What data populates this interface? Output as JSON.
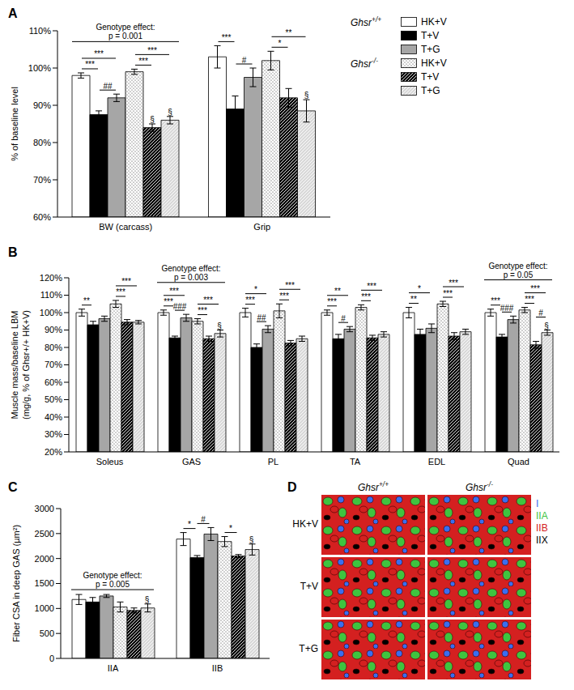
{
  "chart_data": [
    {
      "panel": "A",
      "type": "bar",
      "y_label": "% of baseline level",
      "categories": [
        "BW (carcass)",
        "Grip"
      ],
      "ylim": [
        60,
        110
      ],
      "yticks": [
        {
          "value": 60,
          "label": "60%"
        },
        {
          "value": 70,
          "label": "70%"
        },
        {
          "value": 80,
          "label": "80%"
        },
        {
          "value": 90,
          "label": "90%"
        },
        {
          "value": 100,
          "label": "100%"
        },
        {
          "value": 110,
          "label": "110%"
        }
      ],
      "legend": "right",
      "series": [
        {
          "name": "HK+V",
          "group": "Ghsr+/+",
          "color": "#ffffff",
          "values": [
            98,
            103
          ],
          "errors": [
            0.7,
            3
          ]
        },
        {
          "name": "T+V",
          "group": "Ghsr+/+",
          "color": "#000000",
          "values": [
            87.5,
            89
          ],
          "errors": [
            1,
            3.5
          ]
        },
        {
          "name": "T+G",
          "group": "Ghsr+/+",
          "color": "#a6a6a6",
          "values": [
            92,
            97.5
          ],
          "errors": [
            1,
            2.5
          ]
        },
        {
          "name": "HK+V",
          "group": "Ghsr-/-",
          "color": "#ffffff",
          "values": [
            99,
            102
          ],
          "errors": [
            0.7,
            2.5
          ]
        },
        {
          "name": "T+V",
          "group": "Ghsr-/-",
          "color": "#000000",
          "values": [
            84,
            92
          ],
          "errors": [
            1,
            2.5
          ]
        },
        {
          "name": "T+G",
          "group": "Ghsr-/-",
          "color": "#d9d9d9",
          "values": [
            86,
            88.5
          ],
          "errors": [
            1,
            3
          ]
        }
      ],
      "annotations": [
        {
          "category": 0,
          "from": 0,
          "to": 1,
          "label": "***"
        },
        {
          "category": 0,
          "from": 1,
          "to": 2,
          "label": "##"
        },
        {
          "category": 0,
          "from": 0,
          "to": 2,
          "label": "***"
        },
        {
          "category": 0,
          "from": 3,
          "to": 4,
          "label": "***"
        },
        {
          "category": 0,
          "from": 3,
          "to": 5,
          "label": "***"
        },
        {
          "category": 1,
          "from": 0,
          "to": 1,
          "label": "***"
        },
        {
          "category": 1,
          "from": 1,
          "to": 2,
          "label": "#"
        },
        {
          "category": 1,
          "from": 3,
          "to": 4,
          "label": "*"
        },
        {
          "category": 1,
          "from": 3,
          "to": 5,
          "label": "**"
        }
      ],
      "group_tests": [
        {
          "category": 0,
          "lines": [
            "Genotype effect:",
            "p = 0.001"
          ]
        }
      ],
      "marks": [
        {
          "category": 0,
          "series": 4,
          "label": "§"
        },
        {
          "category": 0,
          "series": 5,
          "label": "§"
        },
        {
          "category": 1,
          "series": 5,
          "label": "§"
        }
      ]
    },
    {
      "panel": "B",
      "type": "bar",
      "y_label": "Muscle mass/baseline LBM (mg/g, % of Ghsr+/+ HK+V)",
      "categories": [
        "Soleus",
        "GAS",
        "PL",
        "TA",
        "EDL",
        "Quad"
      ],
      "ylim": [
        20,
        120
      ],
      "yticks": [
        {
          "value": 20,
          "label": "20%"
        },
        {
          "value": 30,
          "label": "30%"
        },
        {
          "value": 40,
          "label": "40%"
        },
        {
          "value": 50,
          "label": "50%"
        },
        {
          "value": 60,
          "label": "60%"
        },
        {
          "value": 70,
          "label": "70%"
        },
        {
          "value": 80,
          "label": "80%"
        },
        {
          "value": 90,
          "label": "90%"
        },
        {
          "value": 100,
          "label": "100%"
        },
        {
          "value": 110,
          "label": "110%"
        },
        {
          "value": 120,
          "label": "120%"
        }
      ],
      "series": [
        {
          "name": "HK+V",
          "group": "Ghsr+/+",
          "color": "#ffffff",
          "values": [
            100,
            100,
            100,
            100,
            100,
            100
          ],
          "errors": [
            2,
            1.5,
            2.5,
            1.5,
            3,
            2
          ]
        },
        {
          "name": "T+V",
          "group": "Ghsr+/+",
          "color": "#000000",
          "values": [
            93,
            85.5,
            80,
            85,
            87.5,
            86
          ],
          "errors": [
            2,
            1,
            2,
            2.5,
            3,
            1.5
          ]
        },
        {
          "name": "T+G",
          "group": "Ghsr+/+",
          "color": "#a6a6a6",
          "values": [
            96.5,
            97,
            90.5,
            90.5,
            91,
            96
          ],
          "errors": [
            1.5,
            2,
            2,
            1.5,
            2.5,
            2
          ]
        },
        {
          "name": "HK+V",
          "group": "Ghsr-/-",
          "color": "#ffffff",
          "values": [
            105,
            95,
            101,
            103,
            105,
            101.5
          ],
          "errors": [
            2,
            1.5,
            4,
            1.5,
            1.5,
            1.5
          ]
        },
        {
          "name": "T+V",
          "group": "Ghsr-/-",
          "color": "#000000",
          "values": [
            94.5,
            85,
            82.5,
            85.5,
            86.5,
            81.5
          ],
          "errors": [
            1.5,
            1.5,
            1.5,
            1.5,
            2,
            2
          ]
        },
        {
          "name": "T+G",
          "group": "Ghsr-/-",
          "color": "#d9d9d9",
          "values": [
            94.5,
            88,
            85,
            87.5,
            89,
            88.5
          ],
          "errors": [
            1,
            2,
            1.5,
            1.5,
            1.5,
            1.5
          ]
        }
      ],
      "annotations": [
        {
          "category": 0,
          "from": 0,
          "to": 1,
          "label": "**"
        },
        {
          "category": 0,
          "from": 3,
          "to": 4,
          "label": "***"
        },
        {
          "category": 0,
          "from": 3,
          "to": 5,
          "label": "***"
        },
        {
          "category": 1,
          "from": 0,
          "to": 1,
          "label": "***"
        },
        {
          "category": 1,
          "from": 1,
          "to": 2,
          "label": "###"
        },
        {
          "category": 1,
          "from": 0,
          "to": 2,
          "label": "***"
        },
        {
          "category": 1,
          "from": 3,
          "to": 4,
          "label": "***"
        },
        {
          "category": 1,
          "from": 3,
          "to": 5,
          "label": "***"
        },
        {
          "category": 2,
          "from": 0,
          "to": 1,
          "label": "***"
        },
        {
          "category": 2,
          "from": 1,
          "to": 2,
          "label": "##"
        },
        {
          "category": 2,
          "from": 0,
          "to": 2,
          "label": "*"
        },
        {
          "category": 2,
          "from": 3,
          "to": 4,
          "label": "***"
        },
        {
          "category": 2,
          "from": 3,
          "to": 5,
          "label": "***"
        },
        {
          "category": 3,
          "from": 0,
          "to": 1,
          "label": "***"
        },
        {
          "category": 3,
          "from": 1,
          "to": 2,
          "label": "#"
        },
        {
          "category": 3,
          "from": 0,
          "to": 2,
          "label": "**"
        },
        {
          "category": 3,
          "from": 3,
          "to": 4,
          "label": "***"
        },
        {
          "category": 3,
          "from": 3,
          "to": 5,
          "label": "***"
        },
        {
          "category": 4,
          "from": 0,
          "to": 1,
          "label": "**"
        },
        {
          "category": 4,
          "from": 0,
          "to": 2,
          "label": "*"
        },
        {
          "category": 4,
          "from": 3,
          "to": 4,
          "label": "***"
        },
        {
          "category": 4,
          "from": 3,
          "to": 5,
          "label": "***"
        },
        {
          "category": 5,
          "from": 0,
          "to": 1,
          "label": "***"
        },
        {
          "category": 5,
          "from": 1,
          "to": 2,
          "label": "###"
        },
        {
          "category": 5,
          "from": 3,
          "to": 4,
          "label": "***"
        },
        {
          "category": 5,
          "from": 4,
          "to": 5,
          "label": "#"
        },
        {
          "category": 5,
          "from": 3,
          "to": 5,
          "label": "***"
        }
      ],
      "group_tests": [
        {
          "category": 1,
          "lines": [
            "Genotype effect:",
            "p = 0.003"
          ]
        },
        {
          "category": 5,
          "lines": [
            "Genotype effect:",
            "p = 0.05"
          ]
        }
      ],
      "marks": [
        {
          "category": 1,
          "series": 5,
          "label": "§"
        },
        {
          "category": 5,
          "series": 5,
          "label": "§"
        }
      ]
    },
    {
      "panel": "C",
      "type": "bar",
      "y_label": "Fiber CSA in deep GAS (µm²)",
      "categories": [
        "IIA",
        "IIB"
      ],
      "ylim": [
        0,
        3000
      ],
      "yticks": [
        0,
        500,
        1000,
        1500,
        2000,
        2500,
        3000
      ],
      "series": [
        {
          "name": "HK+V",
          "group": "Ghsr+/+",
          "color": "#ffffff",
          "values": [
            1180,
            2390
          ],
          "errors": [
            100,
            130
          ]
        },
        {
          "name": "T+V",
          "group": "Ghsr+/+",
          "color": "#000000",
          "values": [
            1130,
            2020
          ],
          "errors": [
            90,
            40
          ]
        },
        {
          "name": "T+G",
          "group": "Ghsr+/+",
          "color": "#a6a6a6",
          "values": [
            1250,
            2490
          ],
          "errors": [
            30,
            130
          ]
        },
        {
          "name": "HK+V",
          "group": "Ghsr-/-",
          "color": "#ffffff",
          "values": [
            1030,
            2340
          ],
          "errors": [
            100,
            100
          ]
        },
        {
          "name": "T+V",
          "group": "Ghsr-/-",
          "color": "#000000",
          "values": [
            960,
            2050
          ],
          "errors": [
            50,
            30
          ]
        },
        {
          "name": "T+G",
          "group": "Ghsr-/-",
          "color": "#d9d9d9",
          "values": [
            1010,
            2180
          ],
          "errors": [
            80,
            110
          ]
        }
      ],
      "annotations": [
        {
          "category": 1,
          "from": 0,
          "to": 1,
          "label": "*"
        },
        {
          "category": 1,
          "from": 1,
          "to": 2,
          "label": "#"
        },
        {
          "category": 1,
          "from": 3,
          "to": 4,
          "label": "*"
        }
      ],
      "group_tests": [
        {
          "category": 0,
          "lines": [
            "Genotype effect:",
            "p = 0.005"
          ]
        }
      ],
      "marks": [
        {
          "category": 0,
          "series": 5,
          "label": "§"
        },
        {
          "category": 1,
          "series": 5,
          "label": "§"
        }
      ]
    }
  ],
  "panel_d": {
    "panel": "D",
    "columns": [
      "Ghsr+/+",
      "Ghsr-/-"
    ],
    "rows": [
      "HK+V",
      "T+V",
      "T+G"
    ],
    "fiber_types": [
      {
        "name": "I",
        "color": "#3a6df0"
      },
      {
        "name": "IIA",
        "color": "#3fc43f"
      },
      {
        "name": "IIB",
        "color": "#d42020"
      },
      {
        "name": "IIX",
        "color": "#000000"
      }
    ]
  }
}
